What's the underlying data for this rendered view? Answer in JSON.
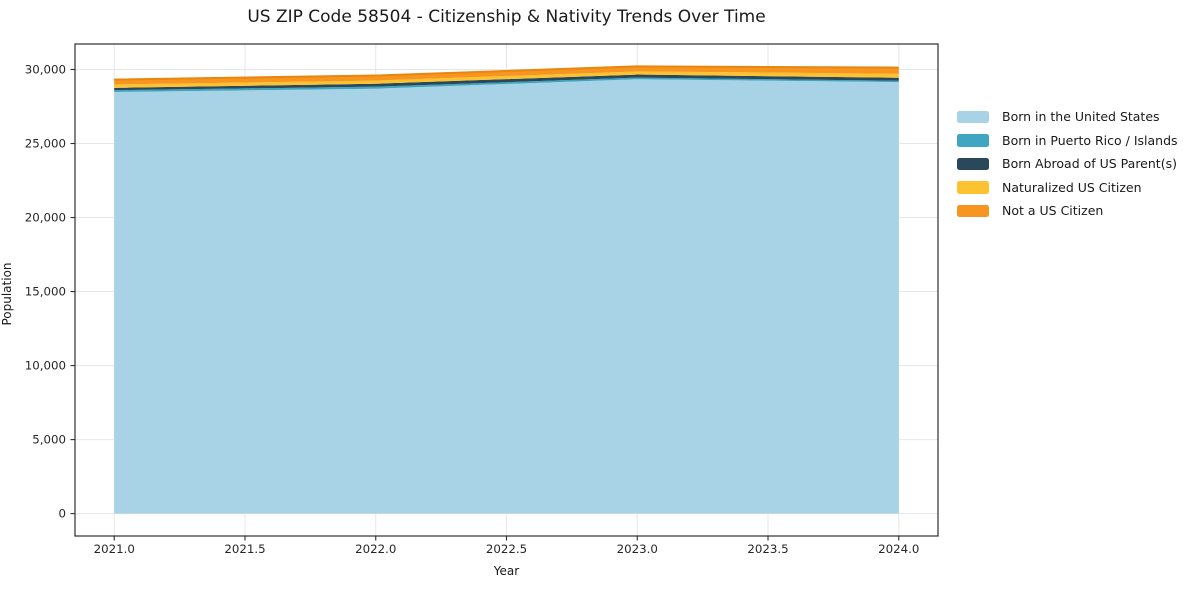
{
  "title": "US ZIP Code 58504 - Citizenship & Nativity Trends Over Time",
  "chart_data": {
    "type": "area",
    "stacked": true,
    "title": "US ZIP Code 58504 - Citizenship & Nativity Trends Over Time",
    "xlabel": "Year",
    "ylabel": "Population",
    "x": [
      2021,
      2022,
      2023,
      2024
    ],
    "series": [
      {
        "name": "Born in the United States",
        "color": "#a8d2e6",
        "values": [
          28480,
          28700,
          29340,
          29150
        ]
      },
      {
        "name": "Born in Puerto Rico / Islands",
        "color": "#3fa5c0",
        "values": [
          120,
          140,
          110,
          90
        ]
      },
      {
        "name": "Born Abroad of US Parent(s)",
        "color": "#29485a",
        "values": [
          160,
          200,
          210,
          200
        ]
      },
      {
        "name": "Naturalized US Citizen",
        "color": "#fdc230",
        "values": [
          230,
          210,
          210,
          270
        ]
      },
      {
        "name": "Not a US Citizen",
        "color": "#f89420",
        "values": [
          330,
          340,
          340,
          420
        ]
      }
    ],
    "top_edge_color": "#e8860d",
    "xlim": [
      2020.85,
      2024.15
    ],
    "ylim": [
      -1512,
      31722
    ],
    "xticks": [
      2021.0,
      2021.5,
      2022.0,
      2022.5,
      2023.0,
      2023.5,
      2024.0
    ],
    "xtick_labels": [
      "2021.0",
      "2021.5",
      "2022.0",
      "2022.5",
      "2023.0",
      "2023.5",
      "2024.0"
    ],
    "yticks": [
      0,
      5000,
      10000,
      15000,
      20000,
      25000,
      30000
    ],
    "ytick_labels": [
      "0",
      "5,000",
      "10,000",
      "15,000",
      "20,000",
      "25,000",
      "30,000"
    ],
    "grid": true,
    "grid_color": "#e7e7e7",
    "frame_color": "#2e2e2e",
    "tick_label_color": "#262626",
    "legend_position": "right"
  }
}
